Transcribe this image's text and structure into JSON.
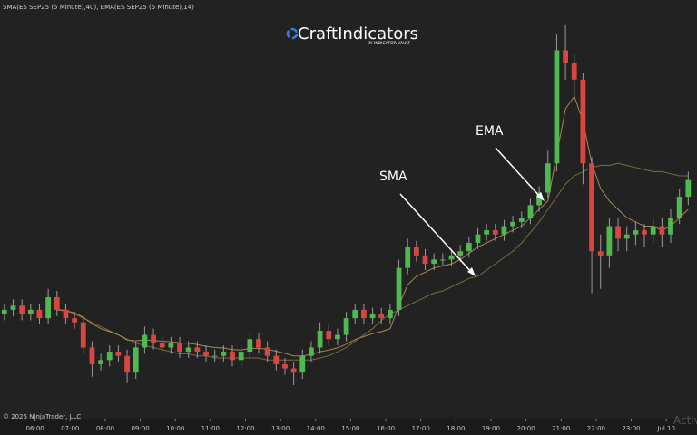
{
  "header": "SMA(ES SEP25 (5 Minute),40), EMA(ES SEP25 (5 Minute),14)",
  "logo": {
    "name": "CraftIndicators",
    "tagline": "BY INDICATOR VAULT"
  },
  "copyright": "© 2025 NinjaTrader, LLC",
  "watermark": "Activ",
  "chart_data": {
    "type": "candlestick",
    "up_color": "#4fb84f",
    "down_color": "#d9463f",
    "open": [
      6297,
      6298,
      6299,
      6297,
      6298,
      6296,
      6301,
      6298,
      6296,
      6295,
      6289,
      6285,
      6286,
      6288,
      6287,
      6283,
      6289,
      6292,
      6290,
      6289,
      6290,
      6288,
      6289,
      6288,
      6287,
      6287,
      6288,
      6286,
      6288,
      6291,
      6289,
      6287,
      6285,
      6284,
      6283,
      6287,
      6289,
      6293,
      6291,
      6292,
      6296,
      6298,
      6296,
      6297,
      6296,
      6298,
      6308,
      6313,
      6311,
      6309,
      6310,
      6310,
      6311,
      6312,
      6314,
      6316,
      6317,
      6316,
      6318,
      6319,
      6320,
      6323,
      6326,
      6333,
      6360,
      6357,
      6353,
      6333,
      6312,
      6311,
      6318,
      6315,
      6316,
      6317,
      6316,
      6318,
      6316,
      6320,
      6325
    ],
    "high": [
      6299.5,
      6300.5,
      6300.5,
      6299.5,
      6299.5,
      6303,
      6302.5,
      6299.5,
      6297.5,
      6296.5,
      6290.5,
      6287.5,
      6289.5,
      6289.5,
      6288.5,
      6290.5,
      6294,
      6293.5,
      6291.5,
      6291.5,
      6291.5,
      6290.5,
      6290.5,
      6289.5,
      6288.5,
      6289.5,
      6289.5,
      6289.5,
      6292.5,
      6292.5,
      6290.5,
      6288.5,
      6286.5,
      6285.5,
      6288.5,
      6290.5,
      6295,
      6294.5,
      6293.5,
      6297.5,
      6299.5,
      6299.5,
      6298.5,
      6298.5,
      6299.5,
      6310,
      6315,
      6314.5,
      6312.5,
      6311.5,
      6311.5,
      6312.5,
      6313.5,
      6315.5,
      6317.5,
      6318.5,
      6318.5,
      6319.5,
      6320.5,
      6321.5,
      6324.5,
      6327.5,
      6336,
      6364,
      6366,
      6359,
      6354.5,
      6334.5,
      6316,
      6320,
      6320,
      6318,
      6319,
      6318.5,
      6320,
      6320,
      6322,
      6327,
      6331
    ],
    "low": [
      6295.5,
      6296.5,
      6295.5,
      6295.5,
      6294.5,
      6294.5,
      6296.5,
      6294.5,
      6293.5,
      6287.5,
      6282,
      6283.5,
      6284.5,
      6285.5,
      6280.5,
      6281.5,
      6287.5,
      6288.5,
      6287.5,
      6287.5,
      6286.5,
      6286.5,
      6286.5,
      6285.5,
      6285.5,
      6285.5,
      6284.5,
      6284.5,
      6286.5,
      6287.5,
      6285.5,
      6283.5,
      6282.5,
      6280,
      6281.5,
      6285.5,
      6287.5,
      6289.5,
      6289.5,
      6290.5,
      6294.5,
      6294.5,
      6294.5,
      6294.5,
      6294.5,
      6296.5,
      6306.5,
      6309.5,
      6307.5,
      6307.5,
      6308.5,
      6308.5,
      6309.5,
      6310.5,
      6312.5,
      6314.5,
      6314.5,
      6314.5,
      6316.5,
      6317.5,
      6318.5,
      6321.5,
      6324.5,
      6331,
      6353,
      6349,
      6328,
      6302,
      6303,
      6308,
      6312,
      6312,
      6313.5,
      6313,
      6314,
      6313,
      6314,
      6318.5,
      6323
    ],
    "close": [
      6298,
      6299,
      6297,
      6298,
      6296,
      6301,
      6298,
      6296,
      6295,
      6289,
      6285,
      6286,
      6288,
      6287,
      6283,
      6289,
      6292,
      6290,
      6289,
      6290,
      6288,
      6289,
      6288,
      6287,
      6287,
      6288,
      6286,
      6288,
      6291,
      6289,
      6287,
      6285,
      6284,
      6283,
      6287,
      6289,
      6293,
      6291,
      6292,
      6296,
      6298,
      6296,
      6297,
      6296,
      6298,
      6308,
      6313,
      6311,
      6309,
      6310,
      6310,
      6311,
      6312,
      6314,
      6316,
      6317,
      6316,
      6318,
      6319,
      6320,
      6323,
      6326,
      6333,
      6360,
      6357,
      6353,
      6333,
      6312,
      6311,
      6318,
      6315,
      6316,
      6317,
      6316,
      6318,
      6316,
      6320,
      6325,
      6329
    ],
    "series": [
      {
        "name": "SMA",
        "color": "#7d6a3c",
        "values": [
          null,
          null,
          null,
          null,
          null,
          null,
          6298,
          6298,
          6297,
          6296,
          6295,
          6294,
          6293,
          6292,
          6291,
          6290,
          6289.5,
          6289,
          6288.5,
          6288,
          6287.5,
          6287.5,
          6287,
          6287,
          6286.5,
          6286.5,
          6286.5,
          6286.5,
          6286.5,
          6286.5,
          6286,
          6286,
          6286,
          6286,
          6286,
          6286,
          6286.5,
          6287,
          6288,
          6289,
          6290.5,
          6292,
          6293.5,
          6295.5,
          6297,
          6298,
          6299,
          6300,
          6301,
          6302,
          6302.5,
          6303.5,
          6304.5,
          6305.5,
          6306,
          6307.5,
          6309,
          6310.5,
          6312,
          6314,
          6316.5,
          6319,
          6322,
          6325,
          6328,
          6330,
          6331,
          6332,
          6332.5,
          6332.5,
          6333,
          6332.5,
          6332,
          6331.5,
          6331,
          6331,
          6330.5,
          6330,
          6330
        ]
      },
      {
        "name": "EMA",
        "color": "#a8874f",
        "values": [
          null,
          null,
          null,
          null,
          null,
          null,
          6298,
          6297.7,
          6297.3,
          6296.2,
          6294.7,
          6293.5,
          6292.8,
          6292,
          6290.8,
          6290.6,
          6290.8,
          6290.7,
          6290.5,
          6290.4,
          6290.1,
          6290,
          6289.7,
          6289.3,
          6289,
          6288.9,
          6288.5,
          6288.4,
          6288.8,
          6288.8,
          6288.6,
          6288.1,
          6287.6,
          6287,
          6287,
          6287.3,
          6288,
          6288.4,
          6288.9,
          6289.8,
          6290.9,
          6291.6,
          6292.3,
          6292.8,
          6293.5,
          6299,
          6304,
          6306,
          6307,
          6308,
          6308.5,
          6309,
          6310,
          6311.5,
          6313,
          6314,
          6315,
          6316,
          6317,
          6318,
          6320,
          6322,
          6324,
          6335,
          6346,
          6349,
          6343,
          6333,
          6327,
          6324,
          6322,
          6320,
          6319,
          6318,
          6318,
          6317,
          6318,
          6320,
          6322
        ]
      }
    ],
    "xlim": [
      -0.5,
      79
    ],
    "ylim": [
      6272,
      6372
    ],
    "xticks": [
      {
        "value": 3.5,
        "label": "06:00"
      },
      {
        "value": 7.5,
        "label": "07:00"
      },
      {
        "value": 11.5,
        "label": "08:00"
      },
      {
        "value": 15.5,
        "label": "09:00"
      },
      {
        "value": 19.5,
        "label": "10:00"
      },
      {
        "value": 23.5,
        "label": "11:00"
      },
      {
        "value": 27.5,
        "label": "12:00"
      },
      {
        "value": 31.5,
        "label": "13:00"
      },
      {
        "value": 35.5,
        "label": "14:00"
      },
      {
        "value": 39.5,
        "label": "15:00"
      },
      {
        "value": 43.5,
        "label": "16:00"
      },
      {
        "value": 47.5,
        "label": "17:00"
      },
      {
        "value": 51.5,
        "label": "18:00"
      },
      {
        "value": 55.5,
        "label": "19:00"
      },
      {
        "value": 59.5,
        "label": "20:00"
      },
      {
        "value": 63.5,
        "label": "21:00"
      },
      {
        "value": 67.5,
        "label": "22:00"
      },
      {
        "value": 71.5,
        "label": "23:00"
      },
      {
        "value": 75.5,
        "label": "Jul 10"
      }
    ]
  }
}
